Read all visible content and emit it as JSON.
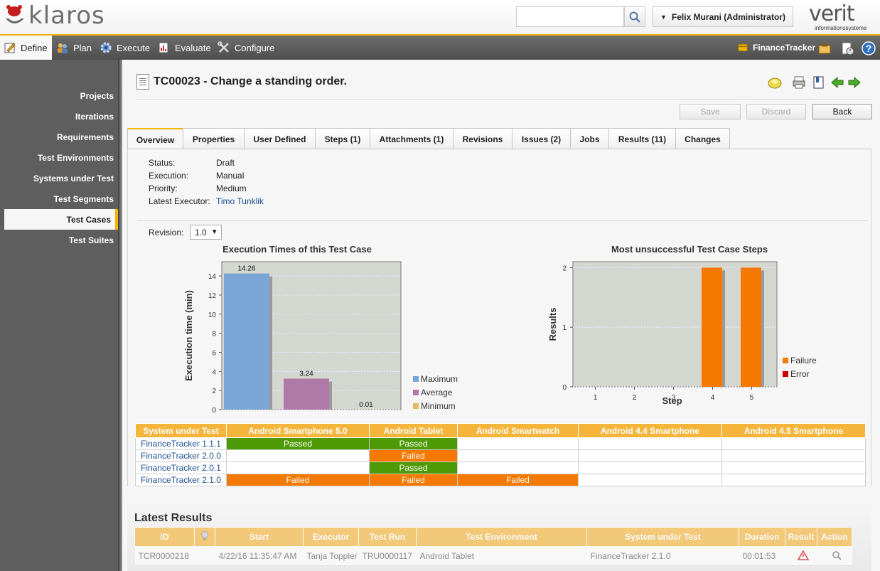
{
  "header": {
    "logo_text": "klaros",
    "search_placeholder": "",
    "user": "Felix Murani (Administrator)",
    "company_logo": "verit",
    "company_sub": "informationssysteme"
  },
  "nav": {
    "define": "Define",
    "plan": "Plan",
    "execute": "Execute",
    "evaluate": "Evaluate",
    "configure": "Configure",
    "project": "FinanceTracker"
  },
  "sidebar": {
    "items": [
      "Projects",
      "Iterations",
      "Requirements",
      "Test Environments",
      "Systems under Test",
      "Test Segments",
      "Test Cases",
      "Test Suites"
    ],
    "active": "Test Cases"
  },
  "page": {
    "title": "TC00023 - Change a standing order.",
    "buttons": {
      "save": "Save",
      "discard": "Discard",
      "back": "Back"
    },
    "tabs": [
      "Overview",
      "Properties",
      "User Defined",
      "Steps (1)",
      "Attachments (1)",
      "Revisions",
      "Issues (2)",
      "Jobs",
      "Results (11)",
      "Changes"
    ],
    "active_tab": "Overview"
  },
  "overview": {
    "props": [
      {
        "label": "Status:",
        "value": "Draft",
        "link": false
      },
      {
        "label": "Execution:",
        "value": "Manual",
        "link": false
      },
      {
        "label": "Priority:",
        "value": "Medium",
        "link": false
      },
      {
        "label": "Latest Executor:",
        "value": "Timo Tunklik",
        "link": true
      }
    ],
    "revision_label": "Revision:",
    "revision_value": "1.0"
  },
  "chart_data": [
    {
      "type": "bar",
      "title": "Execution Times of this Test Case",
      "ylabel": "Execution time (min)",
      "xlabel": "",
      "ylim": [
        0,
        15.5
      ],
      "yticks": [
        0,
        2,
        4,
        6,
        8,
        10,
        12,
        14
      ],
      "series": [
        {
          "name": "Maximum",
          "value": 14.26,
          "label": "14.26",
          "color": "#7aa6d6"
        },
        {
          "name": "Average",
          "value": 3.24,
          "label": "3.24",
          "color": "#b07aa8"
        },
        {
          "name": "Minimum",
          "value": 0.01,
          "label": "0.01",
          "color": "#e8b860"
        }
      ],
      "legend": "right",
      "grid": true
    },
    {
      "type": "bar",
      "title": "Most unsuccessful Test Case Steps",
      "ylabel": "Results",
      "xlabel": "Step",
      "ylim": [
        0,
        2.1
      ],
      "yticks": [
        0,
        1,
        2
      ],
      "categories": [
        "1",
        "2",
        "3",
        "4",
        "5"
      ],
      "series": [
        {
          "name": "Failure",
          "values": [
            0,
            0,
            0,
            2,
            2
          ],
          "color": "#f57900"
        },
        {
          "name": "Error",
          "values": [
            0,
            0,
            0,
            0,
            0
          ],
          "color": "#cc0000"
        }
      ],
      "legend": "right",
      "grid": true
    }
  ],
  "matrix": {
    "headers": [
      "System under Test",
      "Android Smartphone 5.0",
      "Android Tablet",
      "Android Smartwatch",
      "Android 4.4 Smartphone",
      "Android 4.5 Smartphone"
    ],
    "rows": [
      {
        "sut": "FinanceTracker 1.1.1",
        "cells": [
          "Passed",
          "Passed",
          "",
          "",
          ""
        ]
      },
      {
        "sut": "FinanceTracker 2.0.0",
        "cells": [
          "",
          "Failed",
          "",
          "",
          ""
        ]
      },
      {
        "sut": "FinanceTracker 2.0.1",
        "cells": [
          "",
          "Passed",
          "",
          "",
          ""
        ]
      },
      {
        "sut": "FinanceTracker 2.1.0",
        "cells": [
          "Failed",
          "Failed",
          "Failed",
          "",
          ""
        ]
      }
    ]
  },
  "latest": {
    "title": "Latest Results",
    "headers": [
      "ID",
      "",
      "Start",
      "Executor",
      "Test Run",
      "Test Environment",
      "System under Test",
      "Duration",
      "Result",
      "Action"
    ],
    "row": [
      "TCR0000218",
      "",
      "4/22/16 11:35:47 AM",
      "Tanja Toppler",
      "TRU0000117",
      "Android Tablet",
      "FinanceTracker 2.1.0",
      "00:01:53",
      "",
      ""
    ]
  }
}
